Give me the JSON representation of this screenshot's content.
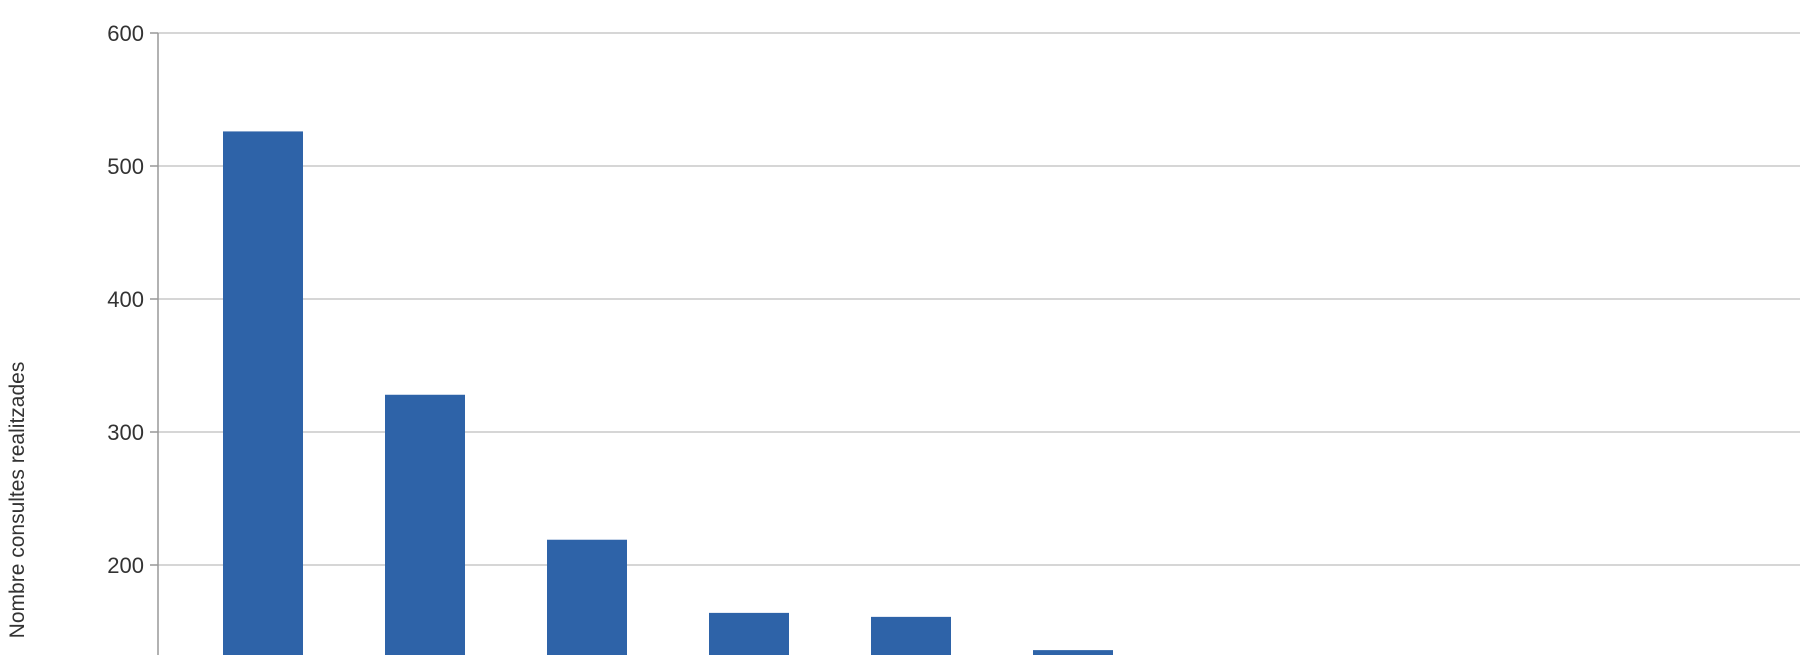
{
  "chart_data": {
    "type": "bar",
    "title": "",
    "xlabel": "",
    "ylabel": "Nombre consultes realitzades",
    "ylim": [
      0,
      600
    ],
    "yticks": [
      600,
      500,
      400,
      300,
      200
    ],
    "grid": true,
    "categories": [
      "",
      "",
      "",
      "",
      "",
      ""
    ],
    "values": [
      526,
      328,
      219,
      164,
      161,
      136
    ],
    "colors": {
      "bar": "#2e63a8",
      "grid": "#c8c8c8",
      "axis": "#999999"
    }
  }
}
